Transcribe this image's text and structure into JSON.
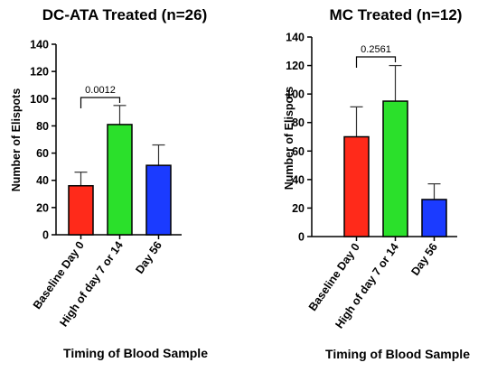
{
  "chart_data": [
    {
      "type": "bar",
      "title": "DC-ATA Treated (n=26)",
      "xlabel": "Timing of Blood Sample",
      "ylabel": "Number of Elispots",
      "ylim": [
        0,
        140
      ],
      "yticks": [
        0,
        20,
        40,
        60,
        80,
        100,
        120,
        140
      ],
      "categories": [
        "Baseline Day 0",
        "High of day 7 or 14",
        "Day 56"
      ],
      "values": [
        36,
        81,
        51
      ],
      "error_upper": [
        46,
        95,
        66
      ],
      "colors": [
        "#ff2a1a",
        "#2be02b",
        "#1b3bff"
      ],
      "annotation": {
        "text": "0.0012",
        "from": 0,
        "to": 1
      }
    },
    {
      "type": "bar",
      "title": "MC Treated (n=12)",
      "xlabel": "Timing of Blood Sample",
      "ylabel": "Number of Elispots",
      "ylim": [
        0,
        140
      ],
      "yticks": [
        0,
        20,
        40,
        60,
        80,
        100,
        120,
        140
      ],
      "categories": [
        "Baseline Day 0",
        "High of day 7 or 14",
        "Day 56"
      ],
      "values": [
        70,
        95,
        26
      ],
      "error_upper": [
        91,
        120,
        37
      ],
      "colors": [
        "#ff2a1a",
        "#2be02b",
        "#1b3bff"
      ],
      "annotation": {
        "text": "0.2561",
        "from": 0,
        "to": 1
      }
    }
  ]
}
